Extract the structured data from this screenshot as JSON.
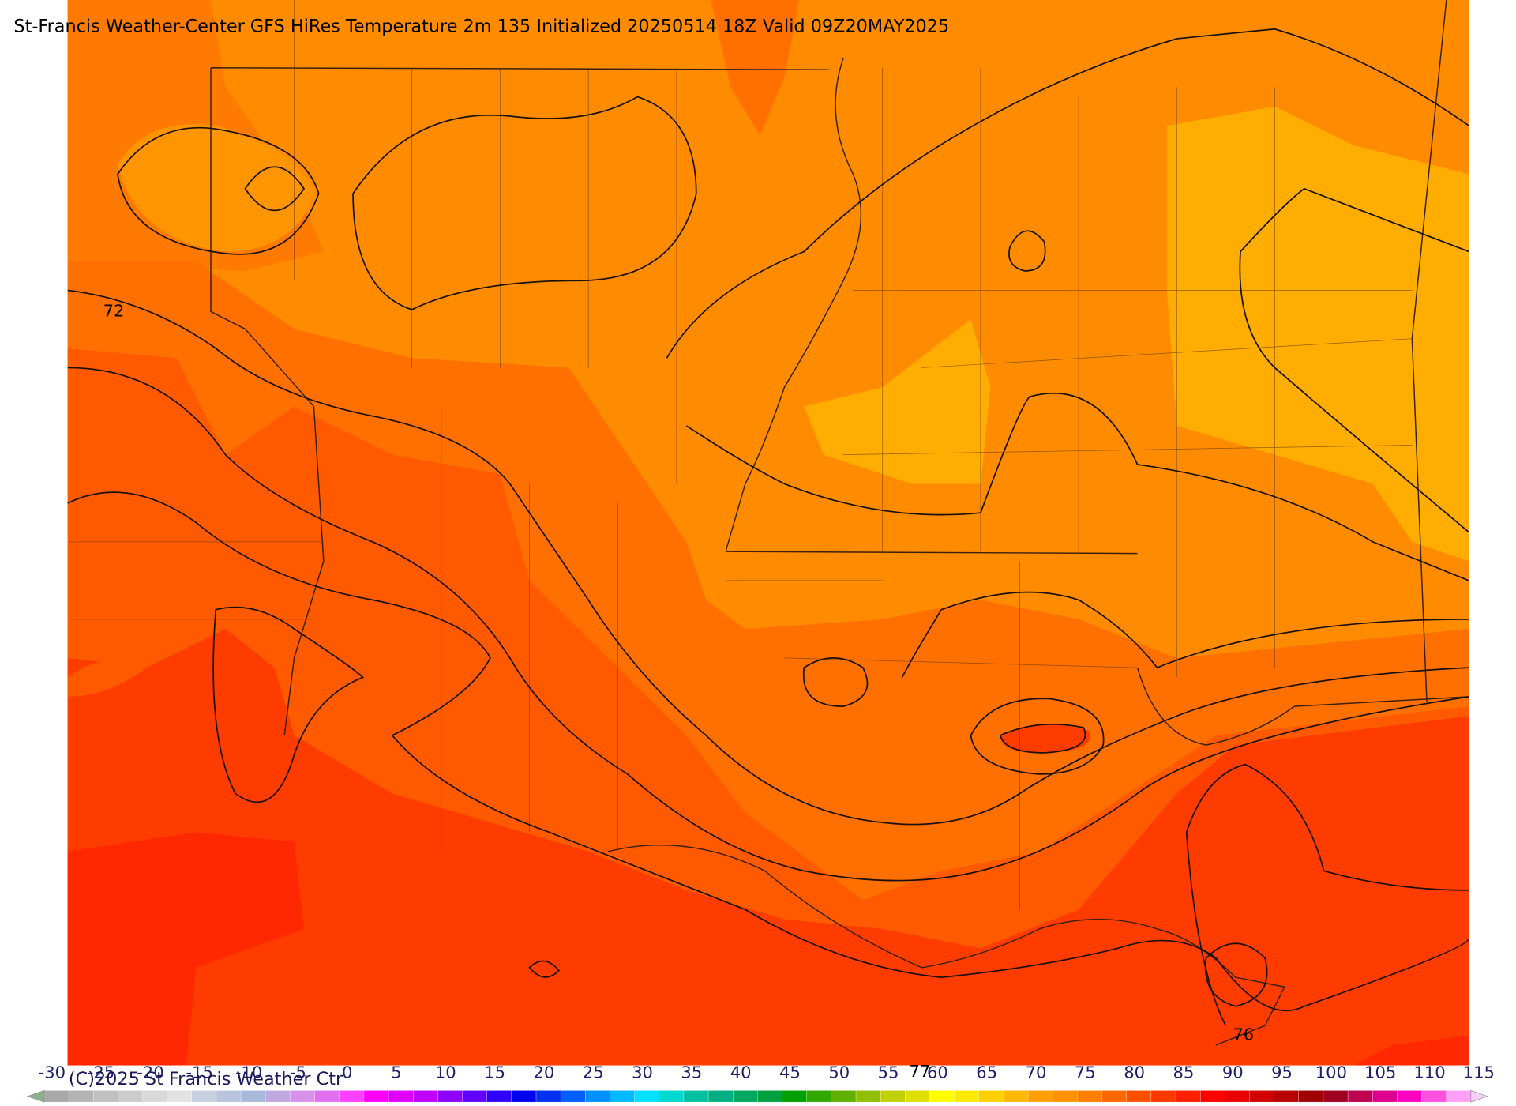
{
  "header": {
    "title": "St-Francis Weather-Center GFS HiRes Temperature 2m  135 Initialized 20250514 18Z Valid 09Z20MAY2025"
  },
  "copyright": "(C)2025 St Francis Weather Ctr",
  "contour_labels": [
    {
      "text": "72",
      "x": 116,
      "y": 322
    },
    {
      "text": "76",
      "x": 1268,
      "y": 1070
    },
    {
      "text": "77",
      "x": 938,
      "y": 1108
    }
  ],
  "colorbar": {
    "ticks": [
      -30,
      -25,
      -20,
      -15,
      -10,
      -5,
      0,
      5,
      10,
      15,
      20,
      25,
      30,
      35,
      40,
      45,
      50,
      55,
      60,
      65,
      70,
      75,
      80,
      85,
      90,
      95,
      100,
      105,
      110,
      115
    ],
    "under_color": "#8fb08f",
    "over_color": "#f4d0f8",
    "colors": [
      "#a8a8a8",
      "#b4b4b4",
      "#c0c0c0",
      "#cccccc",
      "#d8d8d8",
      "#e2e2e2",
      "#c8d0e0",
      "#b8c4dc",
      "#a8b8d8",
      "#c0a8e0",
      "#d890e8",
      "#e070f0",
      "#ff40ff",
      "#ff00ff",
      "#e000ff",
      "#c000ff",
      "#9000ff",
      "#6000ff",
      "#3000ff",
      "#0000f0",
      "#0030f0",
      "#0060ff",
      "#0090ff",
      "#00b8ff",
      "#00e0ff",
      "#00d8d0",
      "#00c0a0",
      "#00b080",
      "#00a860",
      "#00a040",
      "#00a000",
      "#30a800",
      "#60b000",
      "#90c000",
      "#c0d000",
      "#e0e000",
      "#ffff00",
      "#ffe800",
      "#ffd000",
      "#ffb800",
      "#ffa000",
      "#ff9000",
      "#ff8000",
      "#ff6800",
      "#ff5000",
      "#ff3800",
      "#ff2000",
      "#ff0000",
      "#e80000",
      "#d00000",
      "#b80000",
      "#a00000",
      "#a00020",
      "#c00050",
      "#e00090",
      "#ff00c0",
      "#ff50e0",
      "#ffa0f8"
    ]
  }
}
